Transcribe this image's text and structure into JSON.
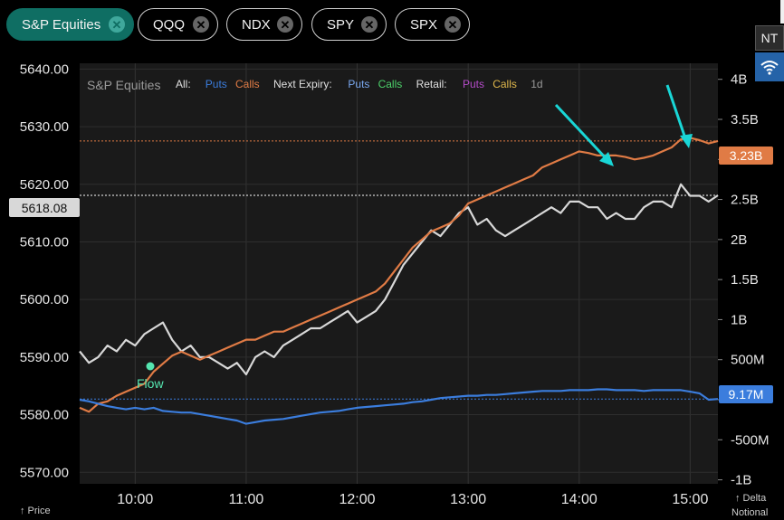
{
  "tabs": [
    {
      "label": "S&P Equities",
      "active": true
    },
    {
      "label": "QQQ",
      "active": false
    },
    {
      "label": "NDX",
      "active": false
    },
    {
      "label": "SPY",
      "active": false
    },
    {
      "label": "SPX",
      "active": false
    }
  ],
  "side": {
    "nt_label": "NT",
    "wifi_icon": "wifi-icon"
  },
  "legend": {
    "title": "S&P Equities",
    "groups": [
      {
        "name": "All:",
        "items": [
          {
            "label": "Puts",
            "color": "#3b7ddd"
          },
          {
            "label": "Calls",
            "color": "#e07b45"
          }
        ]
      },
      {
        "name": "Next Expiry:",
        "items": [
          {
            "label": "Puts",
            "color": "#7aa8f0"
          },
          {
            "label": "Calls",
            "color": "#4cd16a"
          }
        ]
      },
      {
        "name": "Retail:",
        "items": [
          {
            "label": "Puts",
            "color": "#b44cc8"
          },
          {
            "label": "Calls",
            "color": "#e0b84c"
          }
        ]
      }
    ],
    "timeframe": "1d"
  },
  "axes": {
    "left_bottom_label": "↑ Price",
    "right_bottom_label_1": "↑ Delta",
    "right_bottom_label_2": "Notional"
  },
  "annotation": {
    "label": "Flow",
    "color": "#55e6b0"
  },
  "badges": {
    "price": "5618.08",
    "calls": "3.23B",
    "puts": "9.17M"
  },
  "chart_data": {
    "type": "line",
    "x_ticks": [
      "10:00",
      "11:00",
      "12:00",
      "13:00",
      "14:00",
      "15:00"
    ],
    "x_range": [
      "09:30",
      "15:15"
    ],
    "y_left": {
      "ticks": [
        "5640.00",
        "5630.00",
        "5620.00",
        "5610.00",
        "5600.00",
        "5590.00",
        "5580.00",
        "5570.00"
      ],
      "range": [
        5568,
        5641
      ]
    },
    "y_right": {
      "ticks": [
        "4B",
        "3.5B",
        "3B",
        "2.5B",
        "2B",
        "1.5B",
        "1B",
        "500M",
        "0",
        "-500M",
        "-1B"
      ],
      "range": [
        -1.05,
        4.2
      ],
      "unit": "B"
    },
    "grid": true,
    "series": [
      {
        "name": "Price",
        "axis": "left",
        "color": "#d8d8d8",
        "x": [
          "09:30",
          "09:35",
          "09:40",
          "09:45",
          "09:50",
          "09:55",
          "10:00",
          "10:05",
          "10:10",
          "10:15",
          "10:20",
          "10:25",
          "10:30",
          "10:35",
          "10:40",
          "10:45",
          "10:50",
          "10:55",
          "11:00",
          "11:05",
          "11:10",
          "11:15",
          "11:20",
          "11:25",
          "11:30",
          "11:35",
          "11:40",
          "11:45",
          "11:50",
          "11:55",
          "12:00",
          "12:05",
          "12:10",
          "12:15",
          "12:20",
          "12:25",
          "12:30",
          "12:35",
          "12:40",
          "12:45",
          "12:50",
          "12:55",
          "13:00",
          "13:05",
          "13:10",
          "13:15",
          "13:20",
          "13:25",
          "13:30",
          "13:35",
          "13:40",
          "13:45",
          "13:50",
          "13:55",
          "14:00",
          "14:05",
          "14:10",
          "14:15",
          "14:20",
          "14:25",
          "14:30",
          "14:35",
          "14:40",
          "14:45",
          "14:50",
          "14:55",
          "15:00",
          "15:05",
          "15:10",
          "15:15"
        ],
        "values": [
          5591,
          5589,
          5590,
          5592,
          5591,
          5593,
          5592,
          5594,
          5595,
          5596,
          5593,
          5591,
          5592,
          5590,
          5590,
          5589,
          5588,
          5589,
          5587,
          5590,
          5591,
          5590,
          5592,
          5593,
          5594,
          5595,
          5595,
          5596,
          5597,
          5598,
          5596,
          5597,
          5598,
          5600,
          5603,
          5606,
          5608,
          5610,
          5612,
          5611,
          5613,
          5615,
          5616,
          5613,
          5614,
          5612,
          5611,
          5612,
          5613,
          5614,
          5615,
          5616,
          5615,
          5617,
          5617,
          5616,
          5616,
          5614,
          5615,
          5614,
          5614,
          5616,
          5617,
          5617,
          5616,
          5620,
          5618,
          5618,
          5617,
          5618.08
        ]
      },
      {
        "name": "Calls",
        "axis": "right",
        "color": "#e07b45",
        "x": [
          "09:30",
          "09:35",
          "09:40",
          "09:45",
          "09:50",
          "09:55",
          "10:00",
          "10:05",
          "10:10",
          "10:15",
          "10:20",
          "10:25",
          "10:30",
          "10:35",
          "10:40",
          "10:45",
          "10:50",
          "10:55",
          "11:00",
          "11:05",
          "11:10",
          "11:15",
          "11:20",
          "11:25",
          "11:30",
          "11:35",
          "11:40",
          "11:45",
          "11:50",
          "11:55",
          "12:00",
          "12:05",
          "12:10",
          "12:15",
          "12:20",
          "12:25",
          "12:30",
          "12:35",
          "12:40",
          "12:45",
          "12:50",
          "12:55",
          "13:00",
          "13:05",
          "13:10",
          "13:15",
          "13:20",
          "13:25",
          "13:30",
          "13:35",
          "13:40",
          "13:45",
          "13:50",
          "13:55",
          "14:00",
          "14:05",
          "14:10",
          "14:15",
          "14:20",
          "14:25",
          "14:30",
          "14:35",
          "14:40",
          "14:45",
          "14:50",
          "14:55",
          "15:00",
          "15:05",
          "15:10",
          "15:15"
        ],
        "values": [
          -0.1,
          -0.15,
          -0.05,
          -0.02,
          0.05,
          0.1,
          0.15,
          0.2,
          0.35,
          0.45,
          0.55,
          0.6,
          0.55,
          0.5,
          0.55,
          0.6,
          0.65,
          0.7,
          0.75,
          0.75,
          0.8,
          0.85,
          0.85,
          0.9,
          0.95,
          1.0,
          1.05,
          1.1,
          1.15,
          1.2,
          1.25,
          1.3,
          1.35,
          1.45,
          1.6,
          1.75,
          1.9,
          2.0,
          2.1,
          2.15,
          2.2,
          2.3,
          2.45,
          2.5,
          2.55,
          2.6,
          2.65,
          2.7,
          2.75,
          2.8,
          2.9,
          2.95,
          3.0,
          3.05,
          3.1,
          3.08,
          3.05,
          3.05,
          3.05,
          3.03,
          3.0,
          3.02,
          3.05,
          3.1,
          3.15,
          3.25,
          3.27,
          3.24,
          3.2,
          3.23
        ]
      },
      {
        "name": "Puts",
        "axis": "right",
        "color": "#3b7ddd",
        "x": [
          "09:30",
          "09:35",
          "09:40",
          "09:45",
          "09:50",
          "09:55",
          "10:00",
          "10:05",
          "10:10",
          "10:15",
          "10:20",
          "10:25",
          "10:30",
          "10:35",
          "10:40",
          "10:45",
          "10:50",
          "10:55",
          "11:00",
          "11:05",
          "11:10",
          "11:15",
          "11:20",
          "11:25",
          "11:30",
          "11:35",
          "11:40",
          "11:45",
          "11:50",
          "11:55",
          "12:00",
          "12:05",
          "12:10",
          "12:15",
          "12:20",
          "12:25",
          "12:30",
          "12:35",
          "12:40",
          "12:45",
          "12:50",
          "12:55",
          "13:00",
          "13:05",
          "13:10",
          "13:15",
          "13:20",
          "13:25",
          "13:30",
          "13:35",
          "13:40",
          "13:45",
          "13:50",
          "13:55",
          "14:00",
          "14:05",
          "14:10",
          "14:15",
          "14:20",
          "14:25",
          "14:30",
          "14:35",
          "14:40",
          "14:45",
          "14:50",
          "14:55",
          "15:00",
          "15:05",
          "15:10",
          "15:15"
        ],
        "values": [
          0.0,
          -0.02,
          -0.05,
          -0.08,
          -0.1,
          -0.12,
          -0.1,
          -0.12,
          -0.1,
          -0.14,
          -0.15,
          -0.16,
          -0.16,
          -0.18,
          -0.2,
          -0.22,
          -0.24,
          -0.26,
          -0.3,
          -0.28,
          -0.26,
          -0.25,
          -0.24,
          -0.22,
          -0.2,
          -0.18,
          -0.16,
          -0.15,
          -0.14,
          -0.12,
          -0.1,
          -0.09,
          -0.08,
          -0.07,
          -0.06,
          -0.05,
          -0.03,
          -0.02,
          0.0,
          0.02,
          0.03,
          0.04,
          0.05,
          0.05,
          0.06,
          0.06,
          0.07,
          0.08,
          0.09,
          0.1,
          0.11,
          0.11,
          0.11,
          0.12,
          0.12,
          0.12,
          0.13,
          0.13,
          0.12,
          0.12,
          0.12,
          0.11,
          0.12,
          0.12,
          0.12,
          0.12,
          0.1,
          0.08,
          0.0,
          0.009
        ]
      }
    ],
    "reference_lines": [
      {
        "axis": "right",
        "value": 3.23,
        "color": "#e07b45"
      },
      {
        "axis": "left",
        "value": 5618.08,
        "color": "#ffffff"
      },
      {
        "axis": "right",
        "value": 0.009,
        "color": "#3b7ddd"
      }
    ]
  }
}
